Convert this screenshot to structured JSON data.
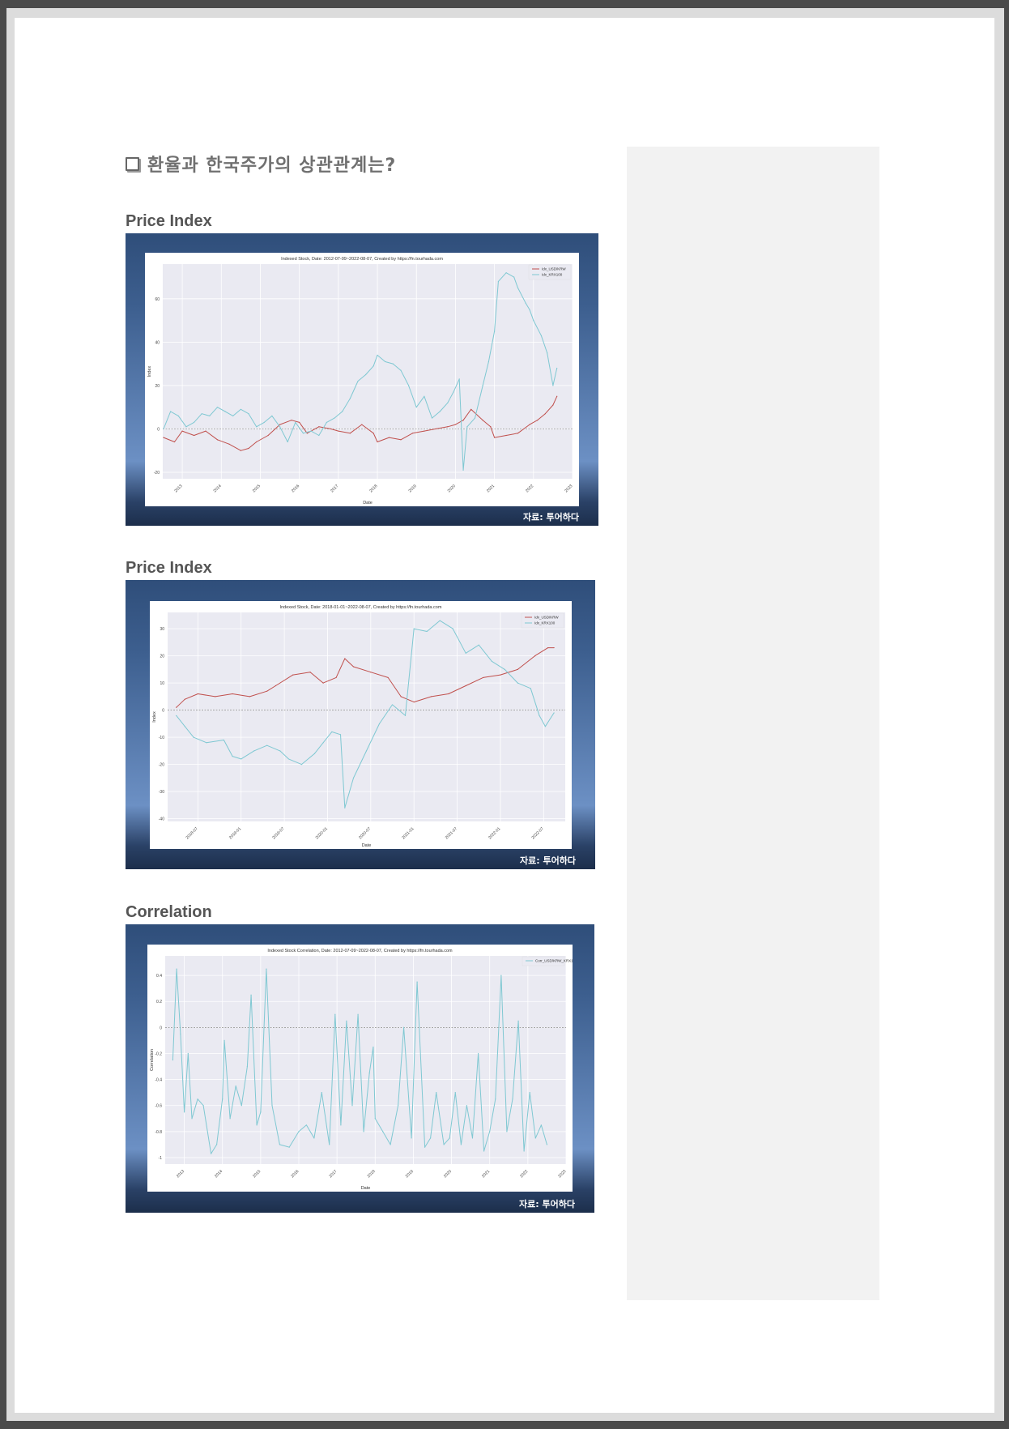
{
  "title": "환율과 한국주가의 상관관계는?",
  "sections": [
    {
      "heading": "Price Index"
    },
    {
      "heading": "Price Index"
    },
    {
      "heading": "Correlation"
    }
  ],
  "source": "자료: 투어하다",
  "colors": {
    "usdkrw": "#c0504d",
    "krx100": "#7fc8d2",
    "corr": "#7fc8d2"
  },
  "chart_data": [
    {
      "type": "line",
      "title": "Indexed Stock,  Date: 2012-07-09~2022-08-07, Created by https://fn.tourhada.com",
      "xlabel": "Date",
      "ylabel": "Index",
      "xlim": [
        2012.5,
        2023.0
      ],
      "ylim": [
        -23,
        76
      ],
      "x_ticks": [
        2013,
        2014,
        2015,
        2016,
        2017,
        2018,
        2019,
        2020,
        2021,
        2022,
        2023
      ],
      "x_tick_labels": [
        "2013",
        "2014",
        "2015",
        "2016",
        "2017",
        "2018",
        "2019",
        "2020",
        "2021",
        "2022",
        "2023"
      ],
      "y_ticks": [
        -20,
        0,
        20,
        40,
        60
      ],
      "legend": {
        "position": "top-right",
        "entries": [
          "Idx_USD/KRW",
          "Idx_KRX100"
        ]
      },
      "grid": true,
      "reference_line": 0,
      "series": [
        {
          "name": "Idx_USD/KRW",
          "color": "#c0504d",
          "x": [
            2012.52,
            2012.8,
            2013.0,
            2013.3,
            2013.6,
            2013.9,
            2014.2,
            2014.5,
            2014.7,
            2014.9,
            2015.2,
            2015.5,
            2015.8,
            2016.0,
            2016.2,
            2016.5,
            2016.8,
            2017.0,
            2017.3,
            2017.6,
            2017.9,
            2018.0,
            2018.3,
            2018.6,
            2018.9,
            2019.2,
            2019.5,
            2019.8,
            2020.0,
            2020.2,
            2020.4,
            2020.7,
            2020.9,
            2021.0,
            2021.3,
            2021.6,
            2021.9,
            2022.1,
            2022.3,
            2022.5,
            2022.6
          ],
          "y": [
            -4,
            -6,
            -1,
            -3,
            -1,
            -5,
            -7,
            -10,
            -9,
            -6,
            -3,
            2,
            4,
            3,
            -2,
            1,
            0,
            -1,
            -2,
            2,
            -2,
            -6,
            -4,
            -5,
            -2,
            -1,
            0,
            1,
            2,
            4,
            9,
            4,
            1,
            -4,
            -3,
            -2,
            2,
            4,
            7,
            11,
            15
          ]
        },
        {
          "name": "Idx_KRX100",
          "color": "#7fc8d2",
          "x": [
            2012.52,
            2012.7,
            2012.9,
            2013.1,
            2013.3,
            2013.5,
            2013.7,
            2013.9,
            2014.1,
            2014.3,
            2014.5,
            2014.7,
            2014.9,
            2015.1,
            2015.3,
            2015.5,
            2015.7,
            2015.9,
            2016.1,
            2016.3,
            2016.5,
            2016.7,
            2016.9,
            2017.1,
            2017.3,
            2017.5,
            2017.7,
            2017.9,
            2018.0,
            2018.2,
            2018.4,
            2018.6,
            2018.8,
            2019.0,
            2019.2,
            2019.4,
            2019.6,
            2019.8,
            2019.95,
            2020.1,
            2020.2,
            2020.3,
            2020.5,
            2020.7,
            2020.85,
            2021.0,
            2021.1,
            2021.3,
            2021.5,
            2021.6,
            2021.8,
            2021.9,
            2022.0,
            2022.2,
            2022.35,
            2022.5,
            2022.6
          ],
          "y": [
            0,
            8,
            6,
            1,
            3,
            7,
            6,
            10,
            8,
            6,
            9,
            7,
            1,
            3,
            6,
            1,
            -6,
            3,
            -2,
            -1,
            -3,
            3,
            5,
            8,
            14,
            22,
            25,
            29,
            34,
            31,
            30,
            27,
            20,
            10,
            15,
            5,
            8,
            12,
            17,
            23,
            -19,
            1,
            5,
            20,
            31,
            45,
            68,
            72,
            70,
            65,
            58,
            55,
            50,
            43,
            35,
            20,
            28
          ]
        }
      ]
    },
    {
      "type": "line",
      "title": "Indexed Stock,  Date: 2018-01-01~2022-08-07, Created by https://fn.tourhada.com",
      "xlabel": "Date",
      "ylabel": "Index",
      "xlim": [
        2018.15,
        2022.75
      ],
      "ylim": [
        -41,
        36
      ],
      "x_ticks": [
        2018.5,
        2019.0,
        2019.5,
        2020.0,
        2020.5,
        2021.0,
        2021.5,
        2022.0,
        2022.5
      ],
      "x_tick_labels": [
        "2018-07",
        "2019-01",
        "2019-07",
        "2020-01",
        "2020-07",
        "2021-01",
        "2021-07",
        "2022-01",
        "2022-07"
      ],
      "y_ticks": [
        -40,
        -30,
        -20,
        -10,
        0,
        10,
        20,
        30
      ],
      "legend": {
        "position": "top-right",
        "entries": [
          "Idx_USD/KRW",
          "Idx_KRX100"
        ]
      },
      "grid": true,
      "reference_line": 0,
      "series": [
        {
          "name": "Idx_USD/KRW",
          "color": "#c0504d",
          "x": [
            2018.25,
            2018.35,
            2018.5,
            2018.7,
            2018.9,
            2019.1,
            2019.3,
            2019.4,
            2019.6,
            2019.8,
            2019.95,
            2020.1,
            2020.2,
            2020.3,
            2020.5,
            2020.7,
            2020.85,
            2021.0,
            2021.2,
            2021.4,
            2021.6,
            2021.8,
            2022.0,
            2022.2,
            2022.4,
            2022.55,
            2022.62
          ],
          "y": [
            1,
            4,
            6,
            5,
            6,
            5,
            7,
            9,
            13,
            14,
            10,
            12,
            19,
            16,
            14,
            12,
            5,
            3,
            5,
            6,
            9,
            12,
            13,
            15,
            20,
            23,
            23
          ]
        },
        {
          "name": "Idx_KRX100",
          "color": "#7fc8d2",
          "x": [
            2018.25,
            2018.35,
            2018.45,
            2018.6,
            2018.8,
            2018.9,
            2019.0,
            2019.15,
            2019.3,
            2019.45,
            2019.55,
            2019.7,
            2019.85,
            2019.95,
            2020.05,
            2020.15,
            2020.2,
            2020.3,
            2020.45,
            2020.6,
            2020.75,
            2020.9,
            2021.0,
            2021.15,
            2021.3,
            2021.45,
            2021.6,
            2021.75,
            2021.9,
            2022.05,
            2022.2,
            2022.35,
            2022.45,
            2022.52,
            2022.62
          ],
          "y": [
            -2,
            -6,
            -10,
            -12,
            -11,
            -17,
            -18,
            -15,
            -13,
            -15,
            -18,
            -20,
            -16,
            -12,
            -8,
            -9,
            -36,
            -25,
            -15,
            -5,
            2,
            -2,
            30,
            29,
            33,
            30,
            21,
            24,
            18,
            15,
            10,
            8,
            -2,
            -6,
            -1
          ]
        }
      ]
    },
    {
      "type": "line",
      "title": "Indexed Stock Correlation,  Date: 2012-07-09~2022-08-07, Created by https://fn.tourhada.com",
      "xlabel": "Date",
      "ylabel": "Correlation",
      "xlim": [
        2012.5,
        2023.0
      ],
      "ylim": [
        -1.05,
        0.55
      ],
      "x_ticks": [
        2013,
        2014,
        2015,
        2016,
        2017,
        2018,
        2019,
        2020,
        2021,
        2022,
        2023
      ],
      "x_tick_labels": [
        "2013",
        "2014",
        "2015",
        "2016",
        "2017",
        "2018",
        "2019",
        "2020",
        "2021",
        "2022",
        "2023"
      ],
      "y_ticks": [
        -1.0,
        -0.8,
        -0.6,
        -0.4,
        -0.2,
        0.0,
        0.2,
        0.4
      ],
      "legend": {
        "position": "top-right",
        "entries": [
          "Corr_USD/KRW_KRX100"
        ]
      },
      "grid": true,
      "reference_line": 0,
      "series": [
        {
          "name": "Corr_USD/KRW_KRX100",
          "color": "#7fc8d2",
          "x": [
            2012.7,
            2012.8,
            2012.9,
            2013.0,
            2013.1,
            2013.2,
            2013.35,
            2013.5,
            2013.7,
            2013.85,
            2014.0,
            2014.05,
            2014.2,
            2014.35,
            2014.5,
            2014.65,
            2014.75,
            2014.9,
            2015.0,
            2015.15,
            2015.3,
            2015.5,
            2015.75,
            2016.0,
            2016.2,
            2016.4,
            2016.6,
            2016.8,
            2016.95,
            2017.1,
            2017.25,
            2017.4,
            2017.55,
            2017.7,
            2017.85,
            2017.95,
            2018.0,
            2018.2,
            2018.4,
            2018.6,
            2018.75,
            2018.95,
            2019.1,
            2019.3,
            2019.45,
            2019.6,
            2019.8,
            2019.95,
            2020.1,
            2020.25,
            2020.4,
            2020.55,
            2020.7,
            2020.85,
            2021.0,
            2021.15,
            2021.3,
            2021.45,
            2021.6,
            2021.75,
            2021.9,
            2022.05,
            2022.2,
            2022.35,
            2022.5
          ],
          "y": [
            -0.25,
            0.45,
            -0.05,
            -0.65,
            -0.2,
            -0.7,
            -0.55,
            -0.6,
            -0.97,
            -0.9,
            -0.55,
            -0.1,
            -0.7,
            -0.45,
            -0.6,
            -0.3,
            0.25,
            -0.75,
            -0.65,
            0.45,
            -0.6,
            -0.9,
            -0.92,
            -0.8,
            -0.75,
            -0.85,
            -0.5,
            -0.9,
            0.1,
            -0.75,
            0.05,
            -0.6,
            0.1,
            -0.8,
            -0.35,
            -0.15,
            -0.7,
            -0.8,
            -0.9,
            -0.6,
            0.0,
            -0.85,
            0.35,
            -0.92,
            -0.85,
            -0.5,
            -0.9,
            -0.85,
            -0.5,
            -0.9,
            -0.6,
            -0.85,
            -0.2,
            -0.95,
            -0.8,
            -0.55,
            0.4,
            -0.8,
            -0.55,
            0.05,
            -0.95,
            -0.5,
            -0.85,
            -0.75,
            -0.9
          ]
        }
      ]
    }
  ]
}
